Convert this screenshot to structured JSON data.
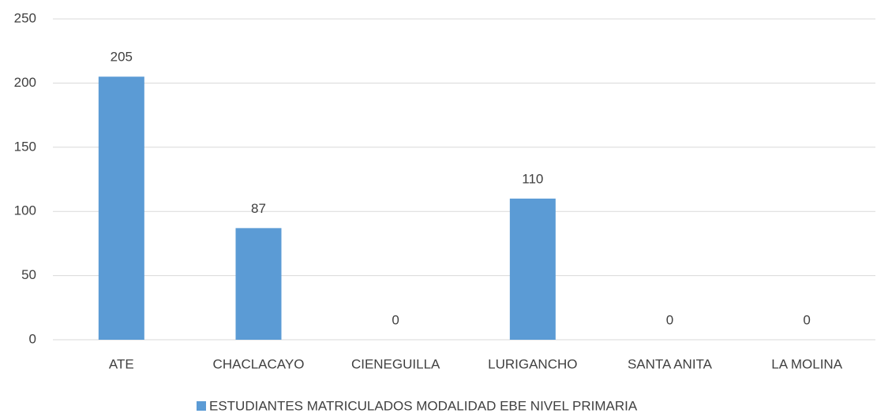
{
  "chart_data": {
    "type": "bar",
    "categories": [
      "ATE",
      "CHACLACAYO",
      "CIENEGUILLA",
      "LURIGANCHO",
      "SANTA ANITA",
      "LA MOLINA"
    ],
    "series": [
      {
        "name": "ESTUDIANTES MATRICULADOS MODALIDAD EBE NIVEL PRIMARIA",
        "color": "#5b9bd5",
        "values": [
          205,
          87,
          0,
          110,
          0,
          0
        ]
      }
    ],
    "ylim": [
      0,
      250
    ],
    "yticks": [
      0,
      50,
      100,
      150,
      200,
      250
    ],
    "grid": true,
    "data_labels": true,
    "legend": "bottom"
  }
}
